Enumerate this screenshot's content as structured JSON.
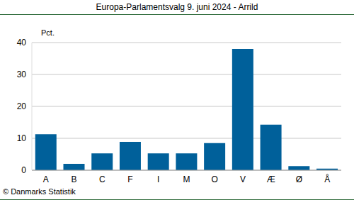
{
  "chart_data": {
    "type": "bar",
    "title": "Europa-Parlamentsvalg 9. juni 2024 - Arrild",
    "y_label": "Pct.",
    "annotations": [
      "© Danmarks Statistik"
    ],
    "categories": [
      "A",
      "B",
      "C",
      "F",
      "I",
      "M",
      "O",
      "V",
      "Æ",
      "Ø",
      "Å"
    ],
    "values": [
      11.3,
      2.0,
      5.3,
      8.9,
      5.3,
      5.3,
      8.5,
      38.0,
      14.3,
      1.3,
      0.5
    ],
    "color": "#00609a",
    "ylim": [
      0,
      40
    ],
    "yticks": [
      0,
      10,
      20,
      30,
      40
    ],
    "grid": true
  }
}
